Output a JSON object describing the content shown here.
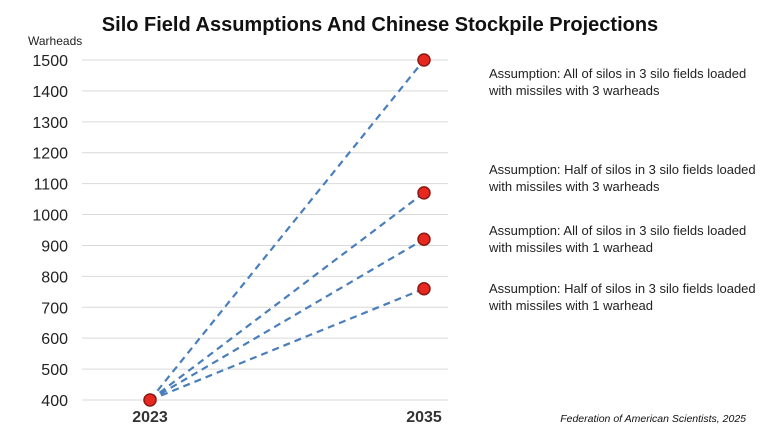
{
  "chart_data": {
    "type": "line",
    "title": "Silo Field Assumptions And Chinese Stockpile Projections",
    "ylabel": "Warheads",
    "xlabel": "",
    "categories": [
      "2023",
      "2035"
    ],
    "ylim": [
      400,
      1500
    ],
    "yticks": [
      400,
      500,
      600,
      700,
      800,
      900,
      1000,
      1100,
      1200,
      1300,
      1400,
      1500
    ],
    "grid": true,
    "line_style": "dashed",
    "series": [
      {
        "values": [
          400,
          1500
        ],
        "annotation": "Assumption: All of silos in 3 silo fields loaded with missiles with 3 warheads"
      },
      {
        "values": [
          400,
          1070
        ],
        "annotation": "Assumption: Half of silos in 3 silo fields loaded with missiles with 3 warheads"
      },
      {
        "values": [
          400,
          920
        ],
        "annotation": "Assumption: All of silos in 3 silo fields loaded with missiles with 1 warhead"
      },
      {
        "values": [
          400,
          760
        ],
        "annotation": "Assumption: Half of silos in 3 silo fields loaded with missiles with 1 warhead"
      }
    ],
    "colors": {
      "line": "#4a7ebb",
      "marker_fill": "#e8281f",
      "marker_stroke": "#8b1a14",
      "grid": "#d9d9d9"
    },
    "source": "Federation of American Scientists, 2025"
  }
}
